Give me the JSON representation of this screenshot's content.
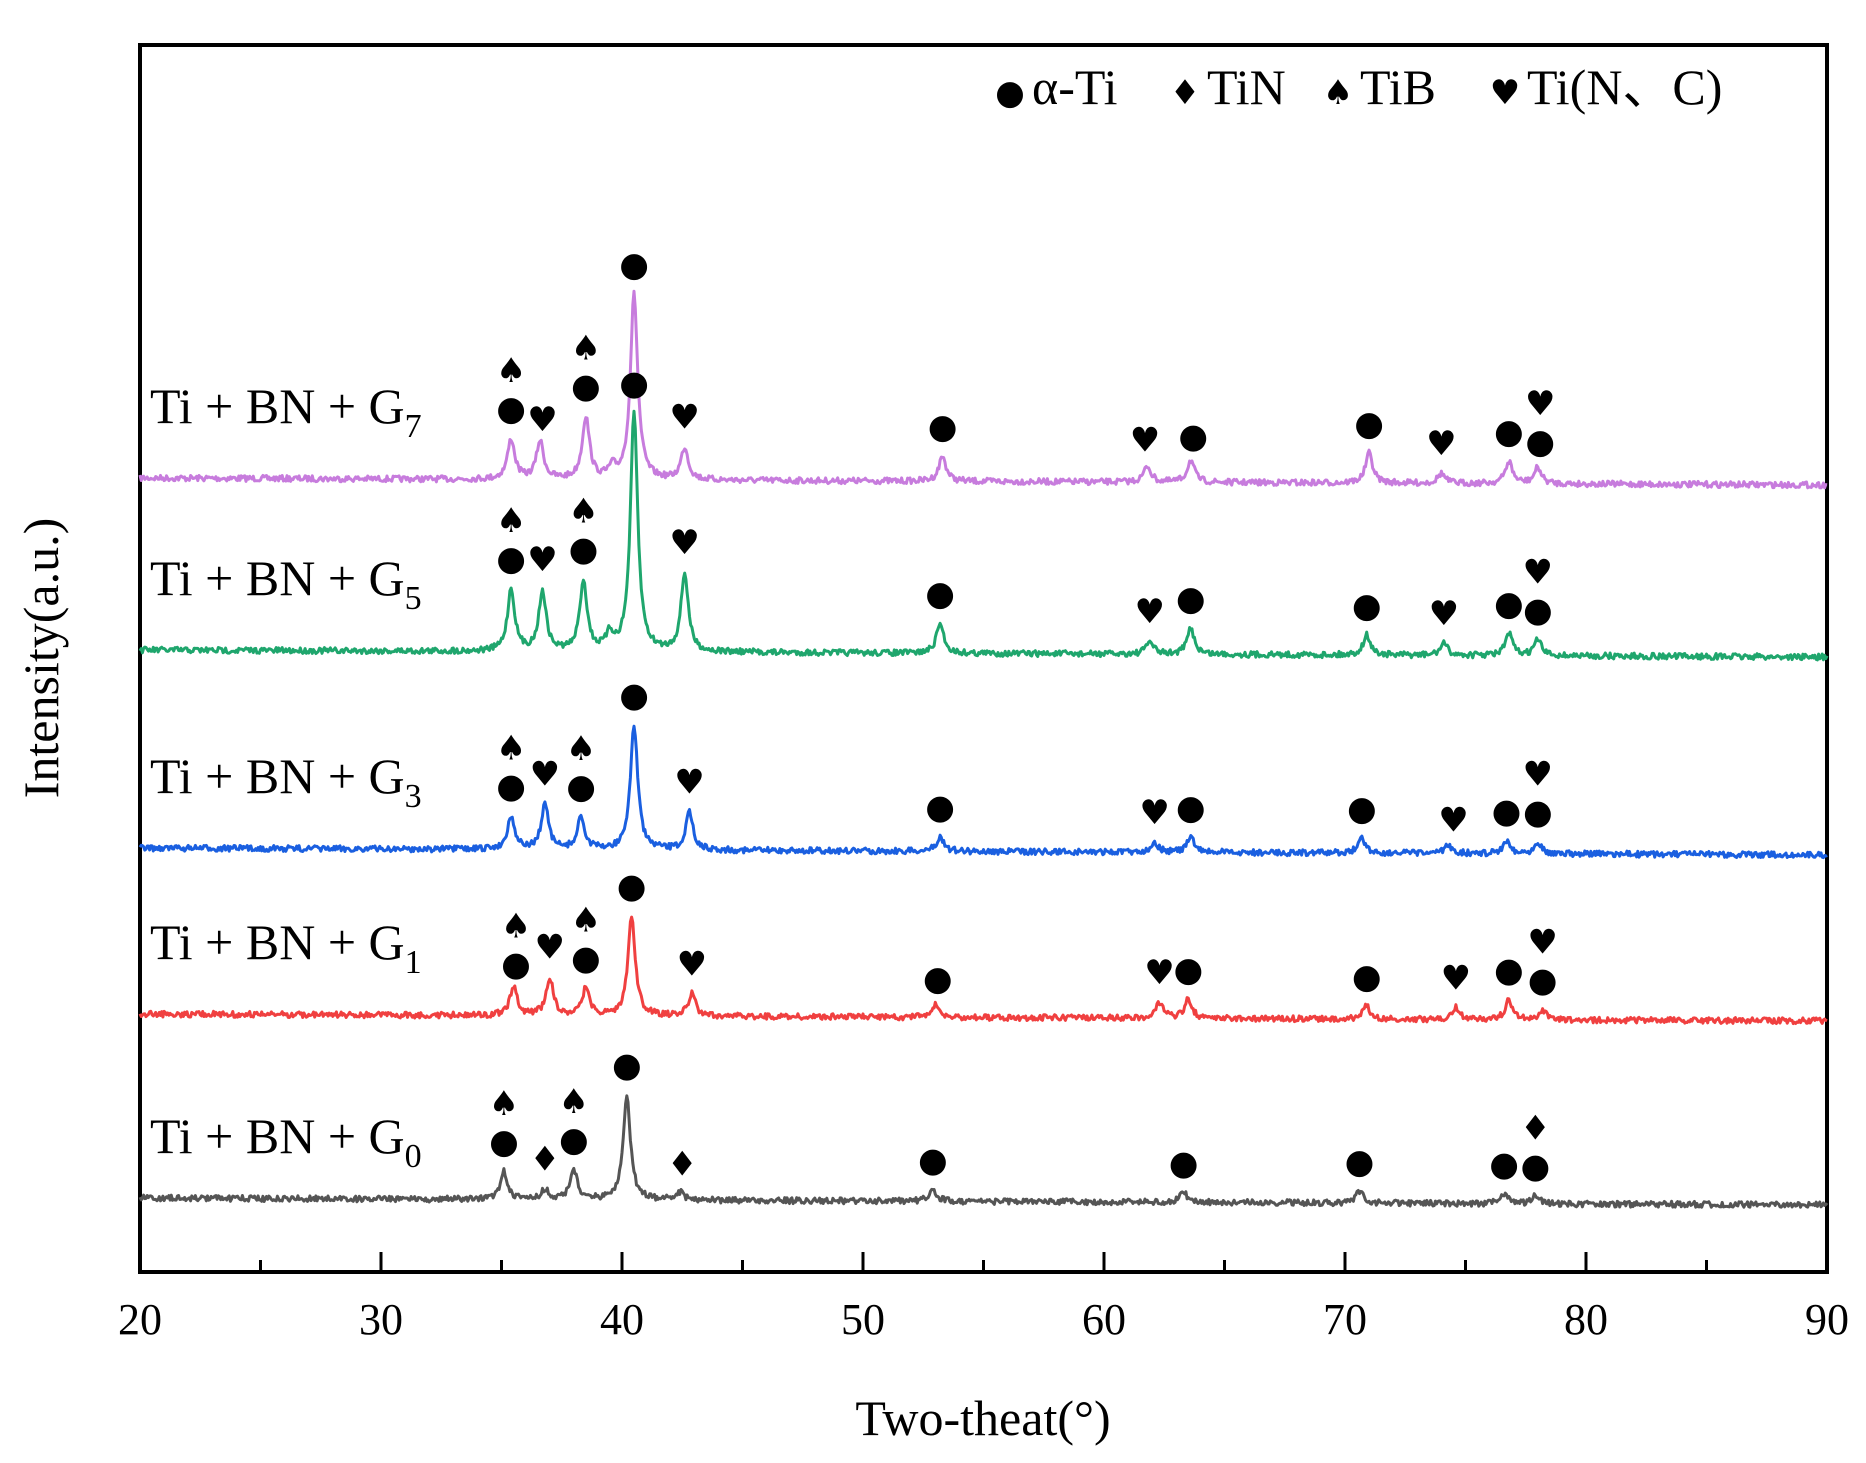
{
  "chart_data": {
    "type": "line",
    "xlabel": "Two-theat(°)",
    "ylabel": "Intensity(a.u.)",
    "xlim": [
      20,
      90
    ],
    "xticks": [
      20,
      30,
      40,
      50,
      60,
      70,
      80,
      90
    ],
    "yticks_visible": false,
    "grid": false,
    "legend": {
      "position": "top-right",
      "entries": [
        {
          "symbol": "circle",
          "glyph": "●",
          "label": "α-Ti"
        },
        {
          "symbol": "diamond",
          "glyph": "♦",
          "label": "TiN"
        },
        {
          "symbol": "spade",
          "glyph": "♠",
          "label": "TiB"
        },
        {
          "symbol": "heart",
          "glyph": "♥",
          "label": "Ti(N、C)"
        }
      ]
    },
    "series": [
      {
        "name": "Ti + BN + G7",
        "label_main": "Ti + BN + G",
        "label_sub": "7",
        "color": "#c77cdd",
        "offset": 720,
        "peaks": [
          [
            35.4,
            40
          ],
          [
            36.6,
            38
          ],
          [
            38.5,
            62
          ],
          [
            39.6,
            10
          ],
          [
            40.5,
            185
          ],
          [
            42.6,
            32
          ],
          [
            53.3,
            25
          ],
          [
            61.8,
            16
          ],
          [
            63.6,
            22
          ],
          [
            71.0,
            30
          ],
          [
            74.0,
            10
          ],
          [
            76.8,
            22
          ],
          [
            78.0,
            16
          ]
        ],
        "markers": [
          {
            "x": 35.4,
            "symbols": [
              "spade",
              "circle"
            ]
          },
          {
            "x": 36.7,
            "symbols": [
              "heart"
            ]
          },
          {
            "x": 38.5,
            "symbols": [
              "spade",
              "circle"
            ]
          },
          {
            "x": 40.5,
            "symbols": [
              "circle"
            ]
          },
          {
            "x": 42.6,
            "symbols": [
              "heart"
            ]
          },
          {
            "x": 53.3,
            "symbols": [
              "circle"
            ]
          },
          {
            "x": 61.7,
            "symbols": [
              "heart"
            ]
          },
          {
            "x": 63.7,
            "symbols": [
              "circle"
            ]
          },
          {
            "x": 71.0,
            "symbols": [
              "circle"
            ]
          },
          {
            "x": 74.0,
            "symbols": [
              "heart"
            ]
          },
          {
            "x": 76.8,
            "symbols": [
              "circle"
            ]
          },
          {
            "x": 78.1,
            "symbols": [
              "heart",
              "circle"
            ]
          }
        ]
      },
      {
        "name": "Ti + BN + G5",
        "label_main": "Ti + BN + G",
        "label_sub": "5",
        "color": "#1fa66d",
        "offset": 548,
        "peaks": [
          [
            35.4,
            62
          ],
          [
            36.7,
            60
          ],
          [
            38.4,
            70
          ],
          [
            39.5,
            15
          ],
          [
            40.5,
            238
          ],
          [
            42.6,
            78
          ],
          [
            53.2,
            30
          ],
          [
            61.9,
            13
          ],
          [
            63.6,
            26
          ],
          [
            70.9,
            20
          ],
          [
            74.1,
            12
          ],
          [
            76.8,
            22
          ],
          [
            78.0,
            16
          ]
        ],
        "markers": [
          {
            "x": 35.4,
            "symbols": [
              "spade",
              "circle"
            ]
          },
          {
            "x": 36.7,
            "symbols": [
              "heart"
            ]
          },
          {
            "x": 38.4,
            "symbols": [
              "spade",
              "circle"
            ]
          },
          {
            "x": 40.5,
            "symbols": [
              "circle"
            ]
          },
          {
            "x": 42.6,
            "symbols": [
              "heart"
            ]
          },
          {
            "x": 53.2,
            "symbols": [
              "circle"
            ]
          },
          {
            "x": 61.9,
            "symbols": [
              "heart"
            ]
          },
          {
            "x": 63.6,
            "symbols": [
              "circle"
            ]
          },
          {
            "x": 70.9,
            "symbols": [
              "circle"
            ]
          },
          {
            "x": 74.1,
            "symbols": [
              "heart"
            ]
          },
          {
            "x": 76.8,
            "symbols": [
              "circle"
            ]
          },
          {
            "x": 78.0,
            "symbols": [
              "heart",
              "circle"
            ]
          }
        ]
      },
      {
        "name": "Ti + BN + G3",
        "label_main": "Ti + BN + G",
        "label_sub": "3",
        "color": "#1a5fe0",
        "offset": 350,
        "peaks": [
          [
            35.4,
            33
          ],
          [
            36.8,
            45
          ],
          [
            38.3,
            32
          ],
          [
            40.5,
            125
          ],
          [
            42.8,
            38
          ],
          [
            53.2,
            15
          ],
          [
            62.1,
            10
          ],
          [
            63.6,
            15
          ],
          [
            70.7,
            15
          ],
          [
            74.3,
            8
          ],
          [
            76.7,
            13
          ],
          [
            78.0,
            12
          ]
        ],
        "markers": [
          {
            "x": 35.4,
            "symbols": [
              "spade",
              "circle"
            ]
          },
          {
            "x": 36.8,
            "symbols": [
              "heart"
            ]
          },
          {
            "x": 38.3,
            "symbols": [
              "spade",
              "circle"
            ]
          },
          {
            "x": 40.5,
            "symbols": [
              "circle"
            ]
          },
          {
            "x": 42.8,
            "symbols": [
              "heart"
            ]
          },
          {
            "x": 53.2,
            "symbols": [
              "circle"
            ]
          },
          {
            "x": 62.1,
            "symbols": [
              "heart"
            ]
          },
          {
            "x": 63.6,
            "symbols": [
              "circle"
            ]
          },
          {
            "x": 70.7,
            "symbols": [
              "circle"
            ]
          },
          {
            "x": 74.5,
            "symbols": [
              "heart"
            ]
          },
          {
            "x": 76.7,
            "symbols": [
              "circle"
            ]
          },
          {
            "x": 78.0,
            "symbols": [
              "heart",
              "circle"
            ]
          }
        ]
      },
      {
        "name": "Ti + BN + G1",
        "label_main": "Ti + BN + G",
        "label_sub": "1",
        "color": "#f04040",
        "offset": 184,
        "peaks": [
          [
            35.5,
            28
          ],
          [
            37.0,
            38
          ],
          [
            38.5,
            27
          ],
          [
            40.4,
            100
          ],
          [
            42.9,
            22
          ],
          [
            53.0,
            12
          ],
          [
            62.3,
            16
          ],
          [
            63.5,
            19
          ],
          [
            70.9,
            13
          ],
          [
            74.6,
            12
          ],
          [
            76.8,
            20
          ],
          [
            78.2,
            10
          ]
        ],
        "markers": [
          {
            "x": 35.6,
            "symbols": [
              "spade",
              "circle"
            ]
          },
          {
            "x": 37.0,
            "symbols": [
              "heart"
            ]
          },
          {
            "x": 38.5,
            "symbols": [
              "spade",
              "circle"
            ]
          },
          {
            "x": 40.4,
            "symbols": [
              "circle"
            ]
          },
          {
            "x": 42.9,
            "symbols": [
              "heart"
            ]
          },
          {
            "x": 53.1,
            "symbols": [
              "circle"
            ]
          },
          {
            "x": 62.3,
            "symbols": [
              "heart"
            ]
          },
          {
            "x": 63.5,
            "symbols": [
              "circle"
            ]
          },
          {
            "x": 70.9,
            "symbols": [
              "circle"
            ]
          },
          {
            "x": 74.6,
            "symbols": [
              "heart"
            ]
          },
          {
            "x": 76.8,
            "symbols": [
              "circle"
            ]
          },
          {
            "x": 78.2,
            "symbols": [
              "heart",
              "circle"
            ]
          }
        ]
      },
      {
        "name": "Ti + BN + G0",
        "label_main": "Ti + BN + G",
        "label_sub": "0",
        "color": "#555555",
        "offset": 0,
        "peaks": [
          [
            35.1,
            28
          ],
          [
            36.8,
            10
          ],
          [
            38.0,
            30
          ],
          [
            40.2,
            105
          ],
          [
            42.4,
            8
          ],
          [
            52.9,
            12
          ],
          [
            63.3,
            10
          ],
          [
            70.6,
            12
          ],
          [
            76.6,
            10
          ],
          [
            77.9,
            8
          ]
        ],
        "markers": [
          {
            "x": 35.1,
            "symbols": [
              "spade",
              "circle"
            ]
          },
          {
            "x": 36.8,
            "symbols": [
              "diamond"
            ]
          },
          {
            "x": 38.0,
            "symbols": [
              "spade",
              "circle"
            ]
          },
          {
            "x": 40.2,
            "symbols": [
              "circle"
            ]
          },
          {
            "x": 42.5,
            "symbols": [
              "diamond"
            ]
          },
          {
            "x": 52.9,
            "symbols": [
              "circle"
            ]
          },
          {
            "x": 63.3,
            "symbols": [
              "circle"
            ]
          },
          {
            "x": 70.6,
            "symbols": [
              "circle"
            ]
          },
          {
            "x": 76.6,
            "symbols": [
              "circle"
            ]
          },
          {
            "x": 77.9,
            "symbols": [
              "diamond",
              "circle"
            ]
          }
        ]
      }
    ]
  }
}
